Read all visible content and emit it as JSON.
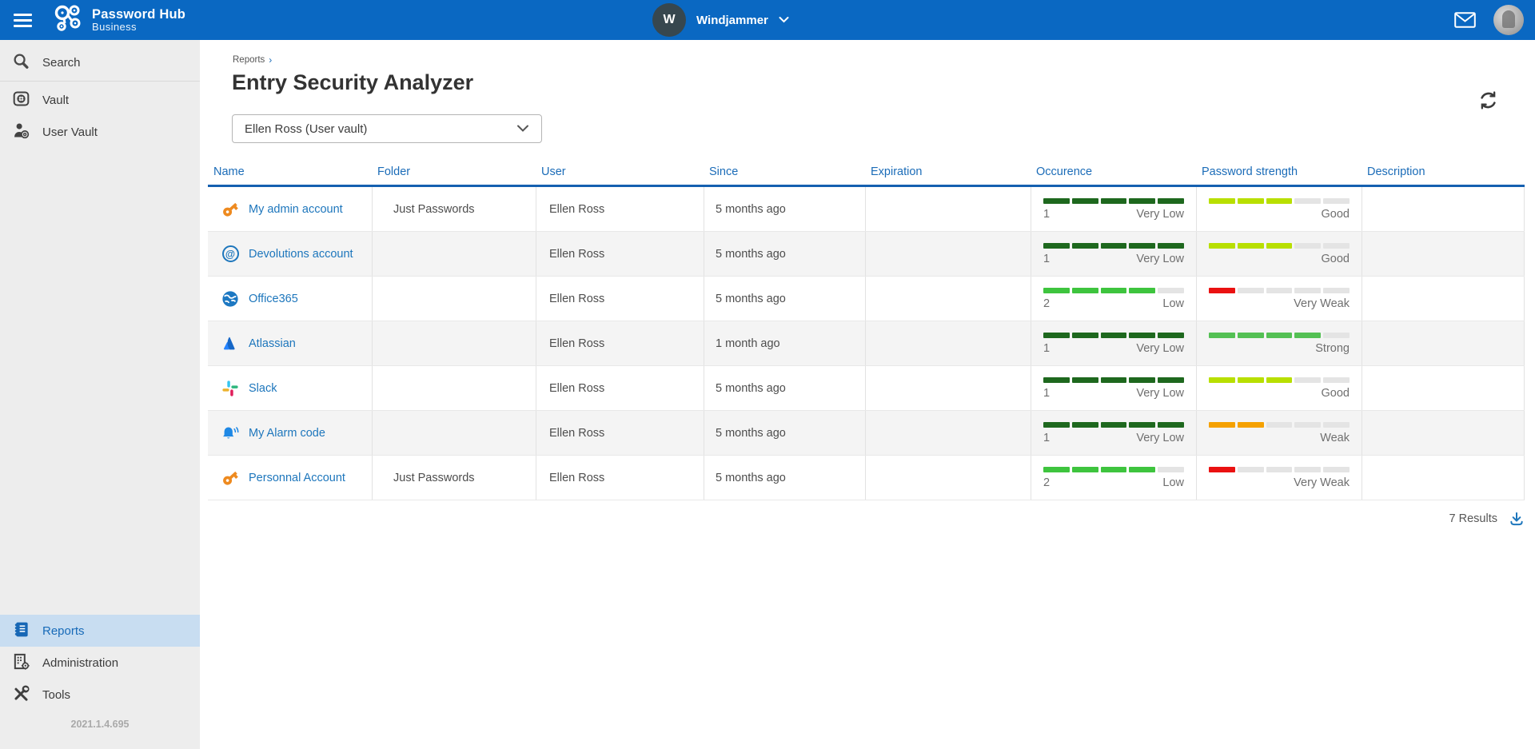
{
  "topbar": {
    "app_name": "Password Hub",
    "app_subtitle": "Business",
    "workspace_initial": "W",
    "workspace_name": "Windjammer"
  },
  "sidebar": {
    "items_top": [
      {
        "label": "Search"
      },
      {
        "label": "Vault"
      },
      {
        "label": "User Vault"
      }
    ],
    "items_bottom": [
      {
        "label": "Reports",
        "selected": true
      },
      {
        "label": "Administration",
        "selected": false
      },
      {
        "label": "Tools",
        "selected": false
      }
    ],
    "version": "2021.1.4.695"
  },
  "page": {
    "breadcrumb": "Reports",
    "breadcrumb_sep": "›",
    "title": "Entry Security Analyzer",
    "vault_selector_value": "Ellen Ross (User vault)",
    "results_count": "7 Results"
  },
  "table": {
    "columns": [
      "Name",
      "Folder",
      "User",
      "Since",
      "Expiration",
      "Occurence",
      "Password strength",
      "Description"
    ],
    "rows": [
      {
        "name": "My admin account",
        "icon": "key",
        "folder": "Just Passwords",
        "user": "Ellen Ross",
        "since": "5 months ago",
        "expiration": "",
        "occurrence": {
          "count": "1",
          "level": "Very Low",
          "segments": 5,
          "color": "#1e681e"
        },
        "strength": {
          "level": "Good",
          "segments": 3,
          "color": "#b8df00"
        },
        "description": ""
      },
      {
        "name": "Devolutions account",
        "icon": "devolutions",
        "folder": "",
        "user": "Ellen Ross",
        "since": "5 months ago",
        "expiration": "",
        "occurrence": {
          "count": "1",
          "level": "Very Low",
          "segments": 5,
          "color": "#1e681e"
        },
        "strength": {
          "level": "Good",
          "segments": 3,
          "color": "#b8df00"
        },
        "description": ""
      },
      {
        "name": "Office365",
        "icon": "globe",
        "folder": "",
        "user": "Ellen Ross",
        "since": "5 months ago",
        "expiration": "",
        "occurrence": {
          "count": "2",
          "level": "Low",
          "segments": 4,
          "color": "#3ec43e"
        },
        "strength": {
          "level": "Very Weak",
          "segments": 1,
          "color": "#ea1111"
        },
        "description": ""
      },
      {
        "name": "Atlassian",
        "icon": "atlassian",
        "folder": "",
        "user": "Ellen Ross",
        "since": "1 month ago",
        "expiration": "",
        "occurrence": {
          "count": "1",
          "level": "Very Low",
          "segments": 5,
          "color": "#1e681e"
        },
        "strength": {
          "level": "Strong",
          "segments": 4,
          "color": "#54c054"
        },
        "description": ""
      },
      {
        "name": "Slack",
        "icon": "slack",
        "folder": "",
        "user": "Ellen Ross",
        "since": "5 months ago",
        "expiration": "",
        "occurrence": {
          "count": "1",
          "level": "Very Low",
          "segments": 5,
          "color": "#1e681e"
        },
        "strength": {
          "level": "Good",
          "segments": 3,
          "color": "#b8df00"
        },
        "description": ""
      },
      {
        "name": "My Alarm code",
        "icon": "bell",
        "folder": "",
        "user": "Ellen Ross",
        "since": "5 months ago",
        "expiration": "",
        "occurrence": {
          "count": "1",
          "level": "Very Low",
          "segments": 5,
          "color": "#1e681e"
        },
        "strength": {
          "level": "Weak",
          "segments": 2,
          "color": "#f5a100"
        },
        "description": ""
      },
      {
        "name": "Personnal Account",
        "icon": "key",
        "folder": "Just Passwords",
        "user": "Ellen Ross",
        "since": "5 months ago",
        "expiration": "",
        "occurrence": {
          "count": "2",
          "level": "Low",
          "segments": 4,
          "color": "#3ec43e"
        },
        "strength": {
          "level": "Very Weak",
          "segments": 1,
          "color": "#ea1111"
        },
        "description": ""
      }
    ]
  },
  "colors": {
    "topbar_blue": "#0a68c2",
    "header_blue": "#1b6cb8",
    "link_blue": "#1d76bc",
    "selected_sidebar_bg": "#c8ddf1",
    "occurrence_very_low": "#1e681e",
    "occurrence_low": "#3ec43e",
    "strength_strong": "#54c054",
    "strength_good": "#b8df00",
    "strength_weak": "#f5a100",
    "strength_very_weak": "#ea1111",
    "bar_empty": "#e4e4e4"
  }
}
